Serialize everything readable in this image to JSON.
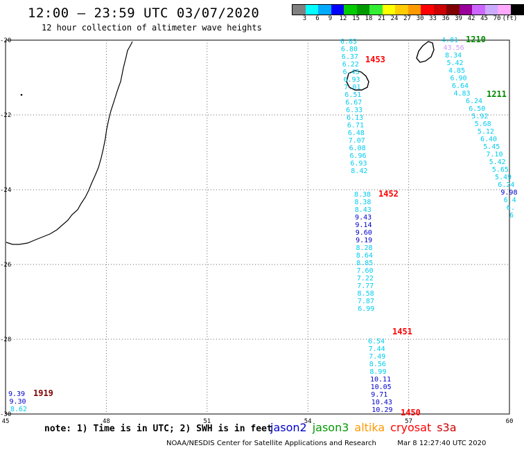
{
  "title": "12:00 — 23:59 UTC 03/07/2020",
  "subtitle": "12 hour collection of altimeter wave heights",
  "colorbar": {
    "colors": [
      "#808080",
      "#00ffff",
      "#00aaff",
      "#0000ff",
      "#00cc00",
      "#009900",
      "#33ee33",
      "#ffff00",
      "#ffcc00",
      "#ff9900",
      "#ff0000",
      "#cc0000",
      "#800000",
      "#990099",
      "#cc66ff",
      "#ccaaff",
      "#ffaaff",
      "#000000"
    ],
    "labels": [
      "3",
      "6",
      "9",
      "12",
      "15",
      "18",
      "21",
      "24",
      "27",
      "30",
      "33",
      "36",
      "39",
      "42",
      "45",
      "70",
      "(ft)"
    ]
  },
  "axes": {
    "lon_ticks": [
      "45",
      "48",
      "51",
      "54",
      "57",
      "60"
    ],
    "lat_ticks": [
      "-20",
      "-22",
      "-24",
      "-26",
      "-28",
      "-30"
    ]
  },
  "tracks": [
    {
      "pass": "1453",
      "pass_color": "#ff0000",
      "values": [
        {
          "v": "6.83",
          "c": "#00ccee"
        },
        {
          "v": "6.80",
          "c": "#00ccee"
        },
        {
          "v": "6.37",
          "c": "#00ccee"
        },
        {
          "v": "6.22",
          "c": "#00ccee"
        },
        {
          "v": "6.43",
          "c": "#00ccee"
        },
        {
          "v": "6.93",
          "c": "#00ccee"
        },
        {
          "v": "7.01",
          "c": "#00ccee"
        },
        {
          "v": "6.51",
          "c": "#00ccee"
        },
        {
          "v": "6.67",
          "c": "#00ccee"
        },
        {
          "v": "6.33",
          "c": "#00ccee"
        },
        {
          "v": "6.13",
          "c": "#00ccee"
        },
        {
          "v": "6.71",
          "c": "#00ccee"
        },
        {
          "v": "6.48",
          "c": "#00ccee"
        },
        {
          "v": "7.07",
          "c": "#00ccee"
        },
        {
          "v": "6.08",
          "c": "#00ccee"
        },
        {
          "v": "6.96",
          "c": "#00ccee"
        },
        {
          "v": "6.93",
          "c": "#00ccee"
        },
        {
          "v": "8.42",
          "c": "#00ccee"
        }
      ]
    },
    {
      "pass": "1452",
      "pass_color": "#ff0000",
      "values": [
        {
          "v": "8.38",
          "c": "#00ccee"
        },
        {
          "v": "8.38",
          "c": "#00ccee"
        },
        {
          "v": "8.43",
          "c": "#00ccee"
        },
        {
          "v": "9.43",
          "c": "#0000cc"
        },
        {
          "v": "9.14",
          "c": "#0000cc"
        },
        {
          "v": "9.60",
          "c": "#0000cc"
        },
        {
          "v": "9.19",
          "c": "#0000cc"
        },
        {
          "v": "8.28",
          "c": "#00ccee"
        },
        {
          "v": "8.64",
          "c": "#00ccee"
        },
        {
          "v": "8.85",
          "c": "#00ccee"
        },
        {
          "v": "7.60",
          "c": "#00ccee"
        },
        {
          "v": "7.22",
          "c": "#00ccee"
        },
        {
          "v": "7.77",
          "c": "#00ccee"
        },
        {
          "v": "8.58",
          "c": "#00ccee"
        },
        {
          "v": "7.87",
          "c": "#00ccee"
        },
        {
          "v": "6.99",
          "c": "#00ccee"
        }
      ]
    },
    {
      "pass": "1451",
      "pass_color": "#ff0000",
      "values": [
        {
          "v": "6.54",
          "c": "#00ccee"
        },
        {
          "v": "7.44",
          "c": "#00ccee"
        },
        {
          "v": "7.49",
          "c": "#00ccee"
        },
        {
          "v": "8.56",
          "c": "#00ccee"
        },
        {
          "v": "8.99",
          "c": "#00ccee"
        },
        {
          "v": "10.11",
          "c": "#0000cc"
        },
        {
          "v": "10.05",
          "c": "#0000cc"
        },
        {
          "v": "9.71",
          "c": "#0000cc"
        },
        {
          "v": "10.43",
          "c": "#0000cc"
        },
        {
          "v": "10.29",
          "c": "#0000cc"
        }
      ]
    },
    {
      "pass": "1450",
      "pass_color": "#ff0000",
      "values": []
    },
    {
      "pass": "1210",
      "pass_color": "#008800",
      "values": [
        {
          "v": "4.81",
          "c": "#00ccee"
        },
        {
          "v": "43.56",
          "c": "#cc99ff"
        },
        {
          "v": "8.34",
          "c": "#00ccee"
        },
        {
          "v": "5.42",
          "c": "#00ccee"
        },
        {
          "v": "4.85",
          "c": "#00ccee"
        },
        {
          "v": "6.90",
          "c": "#00ccee"
        },
        {
          "v": "6.64",
          "c": "#00ccee"
        },
        {
          "v": "4.83",
          "c": "#00ccee"
        }
      ]
    },
    {
      "pass": "1211",
      "pass_color": "#008800",
      "values": [
        {
          "v": "6.24",
          "c": "#00ccee"
        },
        {
          "v": "6.50",
          "c": "#00ccee"
        },
        {
          "v": "5.92",
          "c": "#00ccee"
        },
        {
          "v": "5.68",
          "c": "#00ccee"
        },
        {
          "v": "5.12",
          "c": "#00ccee"
        },
        {
          "v": "6.40",
          "c": "#00ccee"
        },
        {
          "v": "5.45",
          "c": "#00ccee"
        },
        {
          "v": "7.10",
          "c": "#00ccee"
        },
        {
          "v": "5.42",
          "c": "#00ccee"
        },
        {
          "v": "5.65",
          "c": "#00ccee"
        },
        {
          "v": "5.49",
          "c": "#00ccee"
        },
        {
          "v": "6.24",
          "c": "#00ccee"
        },
        {
          "v": "9.98",
          "c": "#0000cc"
        },
        {
          "v": "6.4",
          "c": "#00ccee"
        },
        {
          "v": "6.",
          "c": "#00ccee"
        },
        {
          "v": "6",
          "c": "#00ccee"
        }
      ]
    },
    {
      "pass": "1919",
      "pass_color": "#800000",
      "values": [
        {
          "v": "9.39",
          "c": "#0000cc"
        },
        {
          "v": "9.30",
          "c": "#0000cc"
        },
        {
          "v": "8.62",
          "c": "#00ccee"
        }
      ]
    }
  ],
  "note": "note: 1) Time is in UTC; 2) SWH is in feet",
  "legend": [
    {
      "label": "jason2",
      "color": "#0000cc"
    },
    {
      "label": "jason3",
      "color": "#009900"
    },
    {
      "label": "altika",
      "color": "#ff9900"
    },
    {
      "label": "cryosat",
      "color": "#ff0000"
    },
    {
      "label": "s3a",
      "color": "#cc0000"
    }
  ],
  "footer_left": "NOAA/NESDIS Center for Satellite Applications and Research",
  "footer_right": "Mar  8 12:27:40 UTC 2020"
}
